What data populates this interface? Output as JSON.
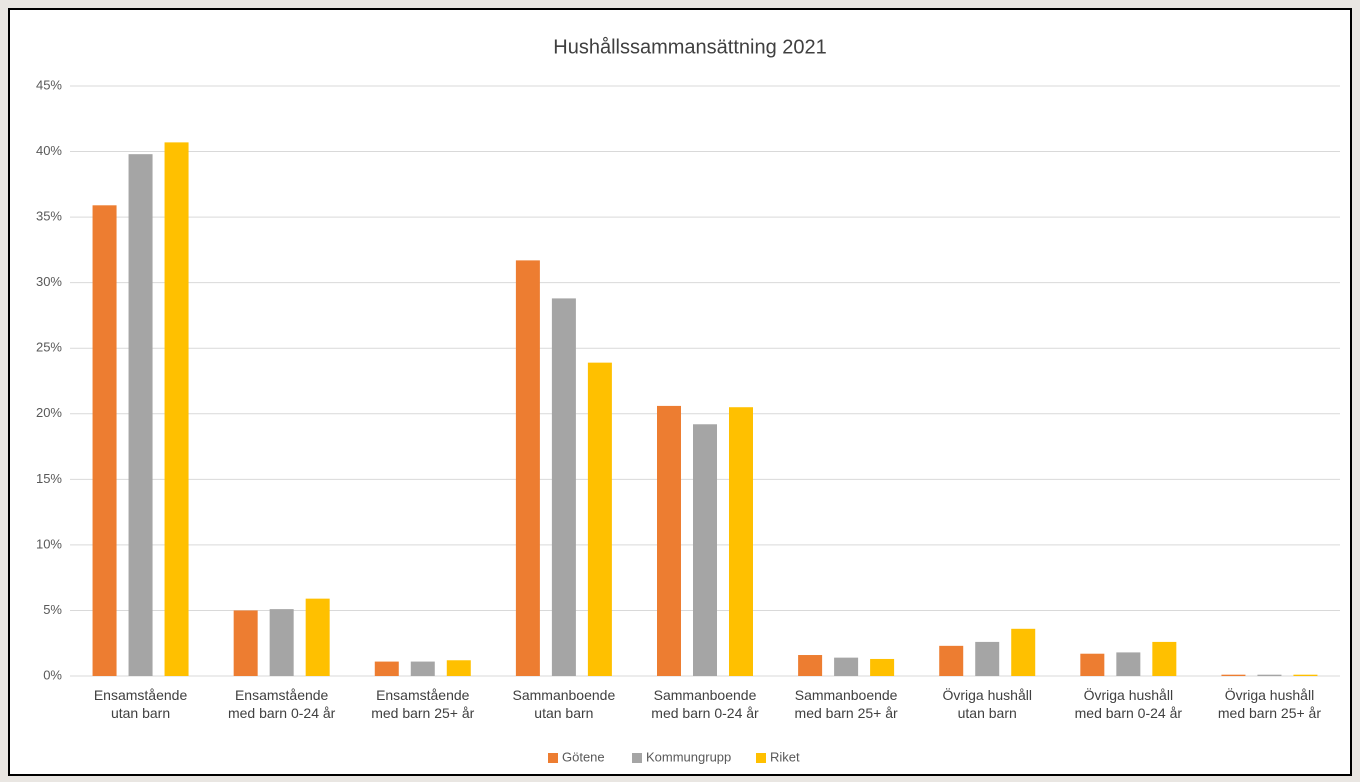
{
  "chart_data": {
    "type": "bar",
    "title": "Hushållssammansättning 2021",
    "categories": [
      "Ensamstående\nutan barn",
      "Ensamstående\nmed barn 0-24 år",
      "Ensamstående\nmed barn 25+ år",
      "Sammanboende\nutan barn",
      "Sammanboende\nmed barn 0-24 år",
      "Sammanboende\nmed barn 25+ år",
      "Övriga hushåll\nutan barn",
      "Övriga hushåll\nmed barn 0-24 år",
      "Övriga hushåll\nmed barn 25+ år"
    ],
    "series": [
      {
        "name": "Götene",
        "color": "#ed7d31",
        "values": [
          35.9,
          5.0,
          1.1,
          31.7,
          20.6,
          1.6,
          2.3,
          1.7,
          0.1
        ]
      },
      {
        "name": "Kommungrupp",
        "color": "#a5a5a5",
        "values": [
          39.8,
          5.1,
          1.1,
          28.8,
          19.2,
          1.4,
          2.6,
          1.8,
          0.1
        ]
      },
      {
        "name": "Riket",
        "color": "#ffc000",
        "values": [
          40.7,
          5.9,
          1.2,
          23.9,
          20.5,
          1.3,
          3.6,
          2.6,
          0.1
        ]
      }
    ],
    "ylim": [
      0,
      45
    ],
    "yticks": [
      {
        "value": 0,
        "label": "0%"
      },
      {
        "value": 5,
        "label": "5%"
      },
      {
        "value": 10,
        "label": "10%"
      },
      {
        "value": 15,
        "label": "15%"
      },
      {
        "value": 20,
        "label": "20%"
      },
      {
        "value": 25,
        "label": "25%"
      },
      {
        "value": 30,
        "label": "30%"
      },
      {
        "value": 35,
        "label": "35%"
      },
      {
        "value": 40,
        "label": "40%"
      },
      {
        "value": 45,
        "label": "45%"
      }
    ],
    "grid": true,
    "legend": "bottom"
  }
}
